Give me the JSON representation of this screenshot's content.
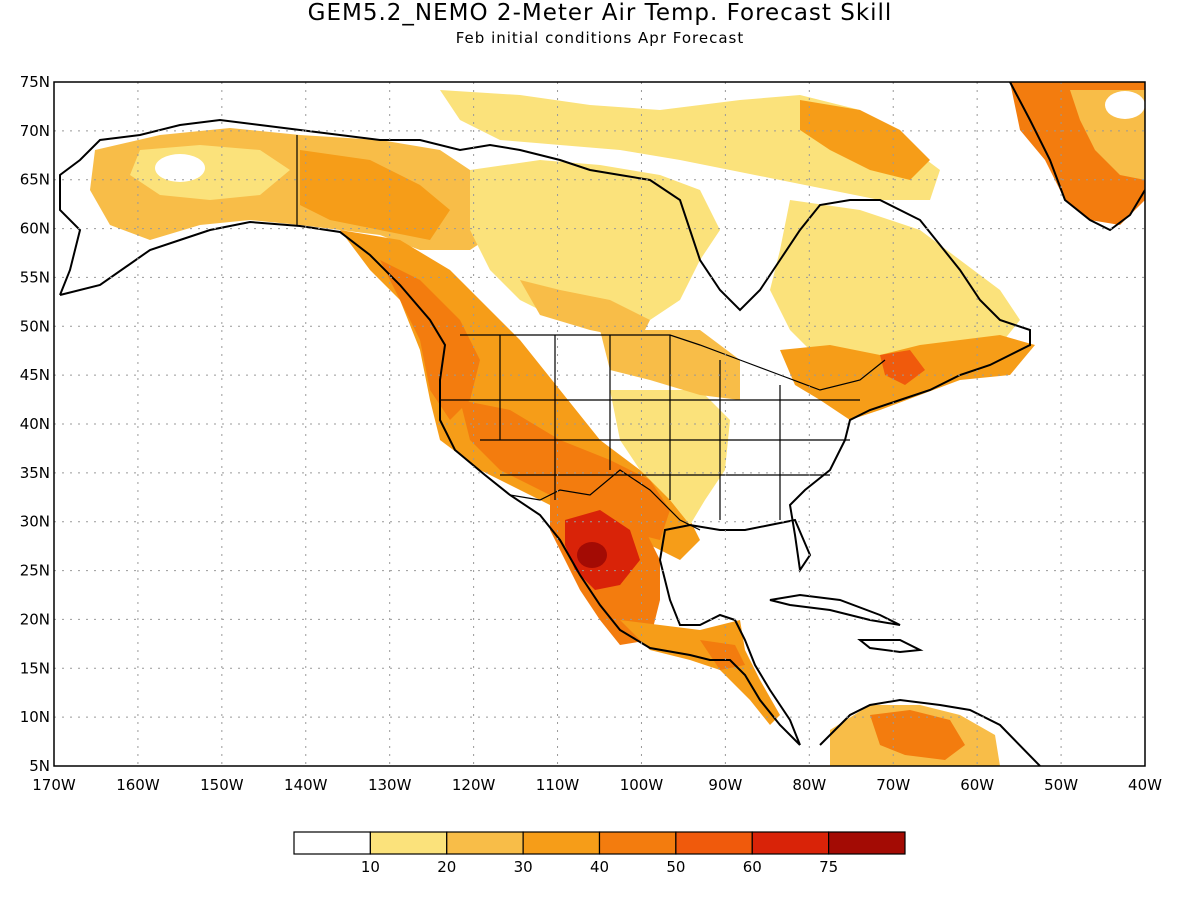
{
  "title": "GEM5.2_NEMO 2-Meter Air Temp. Forecast Skill",
  "subtitle": "Feb initial conditions  Apr Forecast",
  "map": {
    "lon_range": [
      -170,
      -40
    ],
    "lat_range": [
      5,
      75
    ],
    "lat_labels": [
      "5N",
      "10N",
      "15N",
      "20N",
      "25N",
      "30N",
      "35N",
      "40N",
      "45N",
      "50N",
      "55N",
      "60N",
      "65N",
      "70N",
      "75N"
    ],
    "lon_labels": [
      "170W",
      "160W",
      "150W",
      "140W",
      "130W",
      "120W",
      "110W",
      "100W",
      "90W",
      "80W",
      "70W",
      "60W",
      "50W",
      "40W"
    ],
    "grid": true
  },
  "colorbar": {
    "colors": [
      "#ffffff",
      "#fbe27b",
      "#f8bd48",
      "#f69d18",
      "#f37c0e",
      "#f05a0c",
      "#d92308",
      "#a30b04"
    ],
    "labels": [
      "10",
      "20",
      "30",
      "40",
      "50",
      "60",
      "75"
    ]
  }
}
